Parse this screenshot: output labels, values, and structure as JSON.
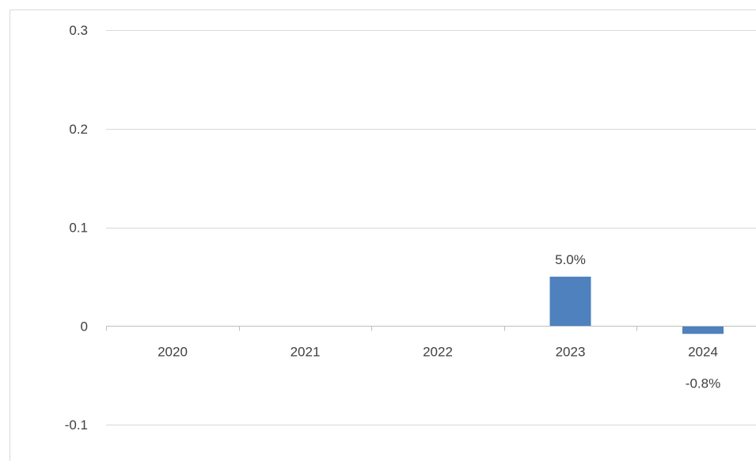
{
  "chart_data": {
    "type": "bar",
    "categories": [
      "2020",
      "2021",
      "2022",
      "2023",
      "2024"
    ],
    "values": [
      0,
      0,
      0,
      0.05,
      -0.008
    ],
    "data_labels": [
      "",
      "",
      "",
      "5.0%",
      "-0.8%"
    ],
    "yticks": [
      "0.3",
      "0.2",
      "0.1",
      "0",
      "-0.1"
    ],
    "ytick_values": [
      0.3,
      0.2,
      0.1,
      0,
      -0.1
    ],
    "ylim": [
      -0.1,
      0.3
    ],
    "title": "",
    "xlabel": "",
    "ylabel": "",
    "grid": true,
    "legend": "none",
    "colors": {
      "bar": "#4E81BD",
      "grid": "#D9D9D9",
      "axis": "#BFBFBF",
      "border": "#D9D9D9",
      "text": "#404040"
    }
  }
}
